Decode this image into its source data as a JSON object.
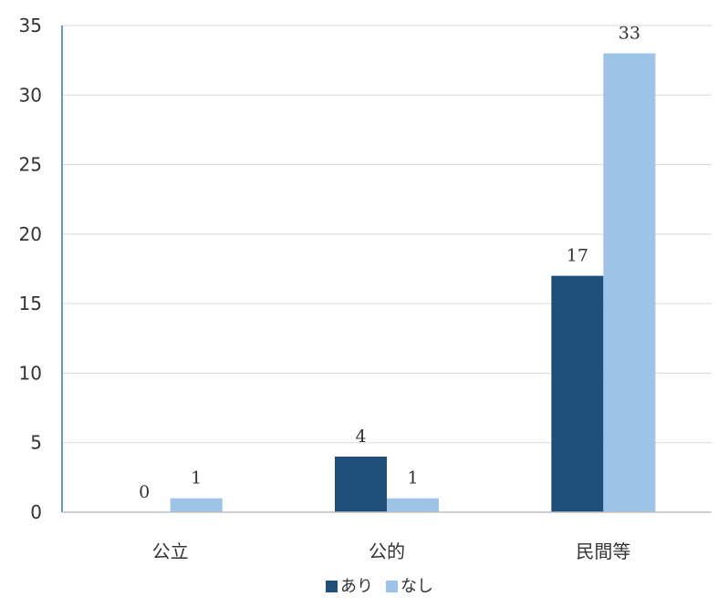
{
  "chart_data": {
    "type": "bar",
    "categories": [
      "公立",
      "公的",
      "民間等"
    ],
    "series": [
      {
        "name": "あり",
        "values": [
          0,
          4,
          17
        ],
        "color": "#1f4e79"
      },
      {
        "name": "なし",
        "values": [
          1,
          1,
          33
        ],
        "color": "#9dc3e6"
      }
    ],
    "ylim": [
      0,
      35
    ],
    "yticks": [
      0,
      5,
      10,
      15,
      20,
      25,
      30,
      35
    ],
    "grid": true,
    "legend": "bottom",
    "axis_color": "#5b9bd5",
    "grid_color": "#d9d9d9"
  }
}
